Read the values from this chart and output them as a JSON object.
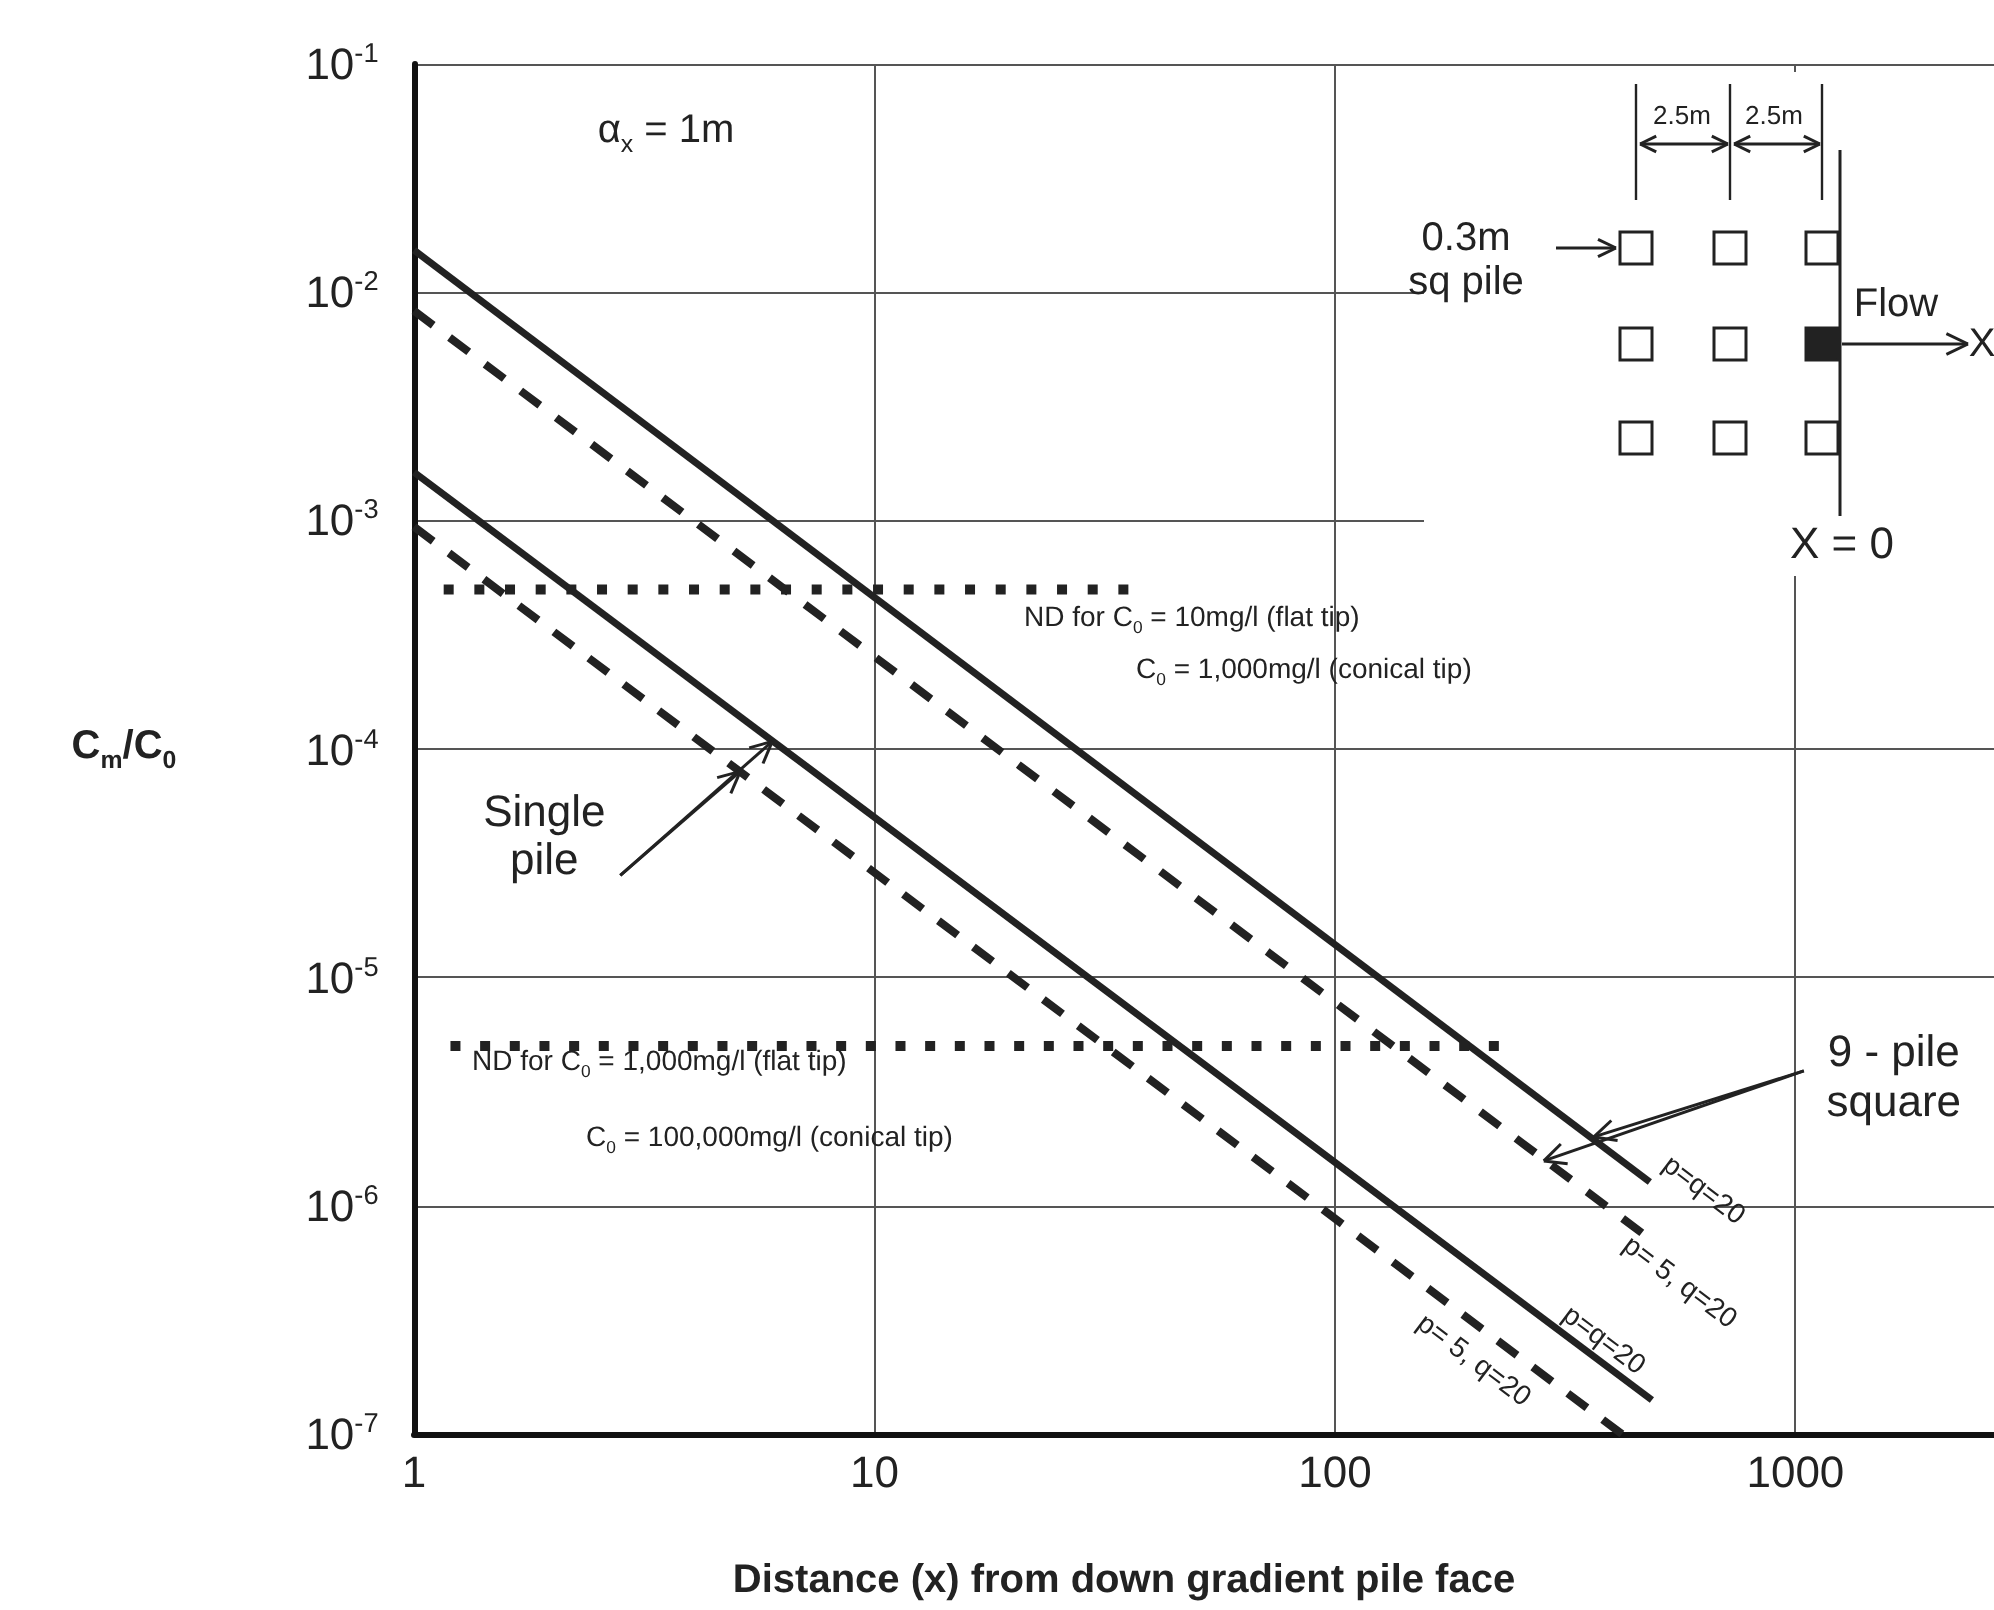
{
  "chart_data": {
    "type": "line",
    "xlabel": "Distance (x) from down gradient pile face",
    "ylabel": "C$_{m}$/C$_{0}$",
    "log": "xy",
    "grid": true,
    "xlim": [
      1,
      2700
    ],
    "xticks": [
      1,
      10,
      100,
      1000
    ],
    "ylim": [
      1e-07,
      0.1
    ],
    "yticks": [
      {
        "value": 1e-07,
        "label": "10$^{-7}$"
      },
      {
        "value": 1e-06,
        "label": "10$^{-6}$"
      },
      {
        "value": 1e-05,
        "label": "10$^{-5}$"
      },
      {
        "value": 0.0001,
        "label": "10$^{-4}$"
      },
      {
        "value": 0.001,
        "label": "10$^{-3}$"
      },
      {
        "value": 0.01,
        "label": "10$^{-2}$"
      },
      {
        "value": 0.1,
        "label": "10$^{-1}$"
      }
    ],
    "series": [
      {
        "name": "p=q=20",
        "color": "#222222",
        "line_style": "solid",
        "x": [
          1,
          483
        ],
        "values": [
          0.0153,
          1.27e-06
        ]
      },
      {
        "name": "p= 5, q=20",
        "color": "#222222",
        "line_style": "dashed",
        "x": [
          1,
          464
        ],
        "values": [
          0.0083,
          7.6e-07
        ]
      },
      {
        "name": "p=q=20",
        "color": "#222222",
        "line_style": "solid",
        "x": [
          1,
          488
        ],
        "values": [
          0.00163,
          1.41e-07
        ]
      },
      {
        "name": "p= 5, q=20",
        "color": "#222222",
        "line_style": "dashed",
        "x": [
          1,
          420
        ],
        "values": [
          0.00094,
          1e-07
        ]
      },
      {
        "color": "#222222",
        "line_style": "dotted",
        "x": [
          1.16,
          35.6
        ],
        "values": [
          0.0005,
          0.0005
        ]
      },
      {
        "color": "#222222",
        "line_style": "dotted",
        "x": [
          1.2,
          227
        ],
        "values": [
          5e-06,
          5e-06
        ]
      }
    ],
    "annotations": [
      "α$_{x}$ = 1m",
      "ND for C$_{0}$ = 10mg/l (flat tip)",
      "C$_{0}$ = 1,000mg/l (conical tip)",
      "ND for C$_{0}$ = 1,000mg/l (flat tip)",
      "C$_{0}$ = 100,000mg/l (conical tip)",
      {
        "text": "Single pile",
        "x": 6,
        "y": 0.000108
      },
      {
        "text": "9 - pile square",
        "x": 365,
        "y": 2e-06
      },
      "2.5m",
      "2.5m",
      "0.3m sq pile",
      "Flow",
      "X",
      "X = 0"
    ]
  }
}
